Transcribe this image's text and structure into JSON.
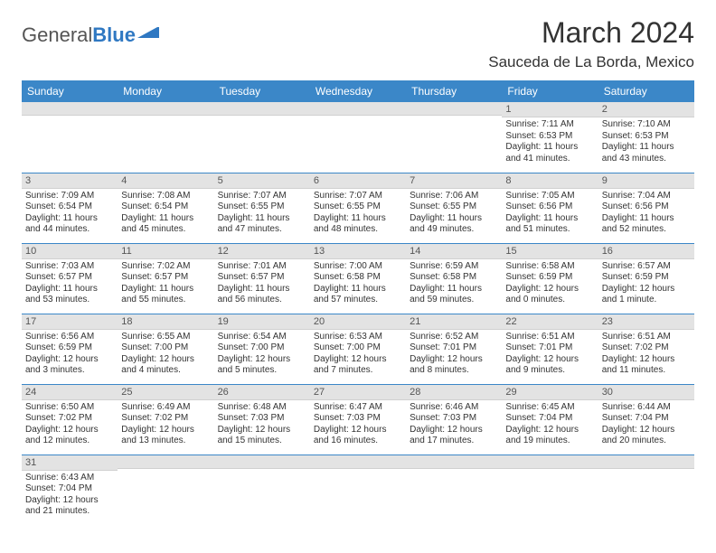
{
  "logo": {
    "word1": "General",
    "word2": "Blue"
  },
  "title": "March 2024",
  "location": "Sauceda de La Borda, Mexico",
  "colors": {
    "header_bg": "#3b87c8",
    "header_text": "#ffffff",
    "daynum_bg": "#e3e3e3",
    "daynum_text": "#555555",
    "row_divider": "#3b87c8",
    "body_text": "#333333",
    "logo_gray": "#555555",
    "logo_blue": "#2f78c2",
    "background": "#ffffff"
  },
  "typography": {
    "title_fontsize": 32,
    "location_fontsize": 17,
    "weekday_fontsize": 12,
    "daynum_fontsize": 11,
    "cell_fontsize": 10
  },
  "weekdays": [
    "Sunday",
    "Monday",
    "Tuesday",
    "Wednesday",
    "Thursday",
    "Friday",
    "Saturday"
  ],
  "weeks": [
    [
      {
        "day": "",
        "lines": []
      },
      {
        "day": "",
        "lines": []
      },
      {
        "day": "",
        "lines": []
      },
      {
        "day": "",
        "lines": []
      },
      {
        "day": "",
        "lines": []
      },
      {
        "day": "1",
        "lines": [
          "Sunrise: 7:11 AM",
          "Sunset: 6:53 PM",
          "Daylight: 11 hours and 41 minutes."
        ]
      },
      {
        "day": "2",
        "lines": [
          "Sunrise: 7:10 AM",
          "Sunset: 6:53 PM",
          "Daylight: 11 hours and 43 minutes."
        ]
      }
    ],
    [
      {
        "day": "3",
        "lines": [
          "Sunrise: 7:09 AM",
          "Sunset: 6:54 PM",
          "Daylight: 11 hours and 44 minutes."
        ]
      },
      {
        "day": "4",
        "lines": [
          "Sunrise: 7:08 AM",
          "Sunset: 6:54 PM",
          "Daylight: 11 hours and 45 minutes."
        ]
      },
      {
        "day": "5",
        "lines": [
          "Sunrise: 7:07 AM",
          "Sunset: 6:55 PM",
          "Daylight: 11 hours and 47 minutes."
        ]
      },
      {
        "day": "6",
        "lines": [
          "Sunrise: 7:07 AM",
          "Sunset: 6:55 PM",
          "Daylight: 11 hours and 48 minutes."
        ]
      },
      {
        "day": "7",
        "lines": [
          "Sunrise: 7:06 AM",
          "Sunset: 6:55 PM",
          "Daylight: 11 hours and 49 minutes."
        ]
      },
      {
        "day": "8",
        "lines": [
          "Sunrise: 7:05 AM",
          "Sunset: 6:56 PM",
          "Daylight: 11 hours and 51 minutes."
        ]
      },
      {
        "day": "9",
        "lines": [
          "Sunrise: 7:04 AM",
          "Sunset: 6:56 PM",
          "Daylight: 11 hours and 52 minutes."
        ]
      }
    ],
    [
      {
        "day": "10",
        "lines": [
          "Sunrise: 7:03 AM",
          "Sunset: 6:57 PM",
          "Daylight: 11 hours and 53 minutes."
        ]
      },
      {
        "day": "11",
        "lines": [
          "Sunrise: 7:02 AM",
          "Sunset: 6:57 PM",
          "Daylight: 11 hours and 55 minutes."
        ]
      },
      {
        "day": "12",
        "lines": [
          "Sunrise: 7:01 AM",
          "Sunset: 6:57 PM",
          "Daylight: 11 hours and 56 minutes."
        ]
      },
      {
        "day": "13",
        "lines": [
          "Sunrise: 7:00 AM",
          "Sunset: 6:58 PM",
          "Daylight: 11 hours and 57 minutes."
        ]
      },
      {
        "day": "14",
        "lines": [
          "Sunrise: 6:59 AM",
          "Sunset: 6:58 PM",
          "Daylight: 11 hours and 59 minutes."
        ]
      },
      {
        "day": "15",
        "lines": [
          "Sunrise: 6:58 AM",
          "Sunset: 6:59 PM",
          "Daylight: 12 hours and 0 minutes."
        ]
      },
      {
        "day": "16",
        "lines": [
          "Sunrise: 6:57 AM",
          "Sunset: 6:59 PM",
          "Daylight: 12 hours and 1 minute."
        ]
      }
    ],
    [
      {
        "day": "17",
        "lines": [
          "Sunrise: 6:56 AM",
          "Sunset: 6:59 PM",
          "Daylight: 12 hours and 3 minutes."
        ]
      },
      {
        "day": "18",
        "lines": [
          "Sunrise: 6:55 AM",
          "Sunset: 7:00 PM",
          "Daylight: 12 hours and 4 minutes."
        ]
      },
      {
        "day": "19",
        "lines": [
          "Sunrise: 6:54 AM",
          "Sunset: 7:00 PM",
          "Daylight: 12 hours and 5 minutes."
        ]
      },
      {
        "day": "20",
        "lines": [
          "Sunrise: 6:53 AM",
          "Sunset: 7:00 PM",
          "Daylight: 12 hours and 7 minutes."
        ]
      },
      {
        "day": "21",
        "lines": [
          "Sunrise: 6:52 AM",
          "Sunset: 7:01 PM",
          "Daylight: 12 hours and 8 minutes."
        ]
      },
      {
        "day": "22",
        "lines": [
          "Sunrise: 6:51 AM",
          "Sunset: 7:01 PM",
          "Daylight: 12 hours and 9 minutes."
        ]
      },
      {
        "day": "23",
        "lines": [
          "Sunrise: 6:51 AM",
          "Sunset: 7:02 PM",
          "Daylight: 12 hours and 11 minutes."
        ]
      }
    ],
    [
      {
        "day": "24",
        "lines": [
          "Sunrise: 6:50 AM",
          "Sunset: 7:02 PM",
          "Daylight: 12 hours and 12 minutes."
        ]
      },
      {
        "day": "25",
        "lines": [
          "Sunrise: 6:49 AM",
          "Sunset: 7:02 PM",
          "Daylight: 12 hours and 13 minutes."
        ]
      },
      {
        "day": "26",
        "lines": [
          "Sunrise: 6:48 AM",
          "Sunset: 7:03 PM",
          "Daylight: 12 hours and 15 minutes."
        ]
      },
      {
        "day": "27",
        "lines": [
          "Sunrise: 6:47 AM",
          "Sunset: 7:03 PM",
          "Daylight: 12 hours and 16 minutes."
        ]
      },
      {
        "day": "28",
        "lines": [
          "Sunrise: 6:46 AM",
          "Sunset: 7:03 PM",
          "Daylight: 12 hours and 17 minutes."
        ]
      },
      {
        "day": "29",
        "lines": [
          "Sunrise: 6:45 AM",
          "Sunset: 7:04 PM",
          "Daylight: 12 hours and 19 minutes."
        ]
      },
      {
        "day": "30",
        "lines": [
          "Sunrise: 6:44 AM",
          "Sunset: 7:04 PM",
          "Daylight: 12 hours and 20 minutes."
        ]
      }
    ],
    [
      {
        "day": "31",
        "lines": [
          "Sunrise: 6:43 AM",
          "Sunset: 7:04 PM",
          "Daylight: 12 hours and 21 minutes."
        ]
      },
      {
        "day": "",
        "lines": []
      },
      {
        "day": "",
        "lines": []
      },
      {
        "day": "",
        "lines": []
      },
      {
        "day": "",
        "lines": []
      },
      {
        "day": "",
        "lines": []
      },
      {
        "day": "",
        "lines": []
      }
    ]
  ]
}
